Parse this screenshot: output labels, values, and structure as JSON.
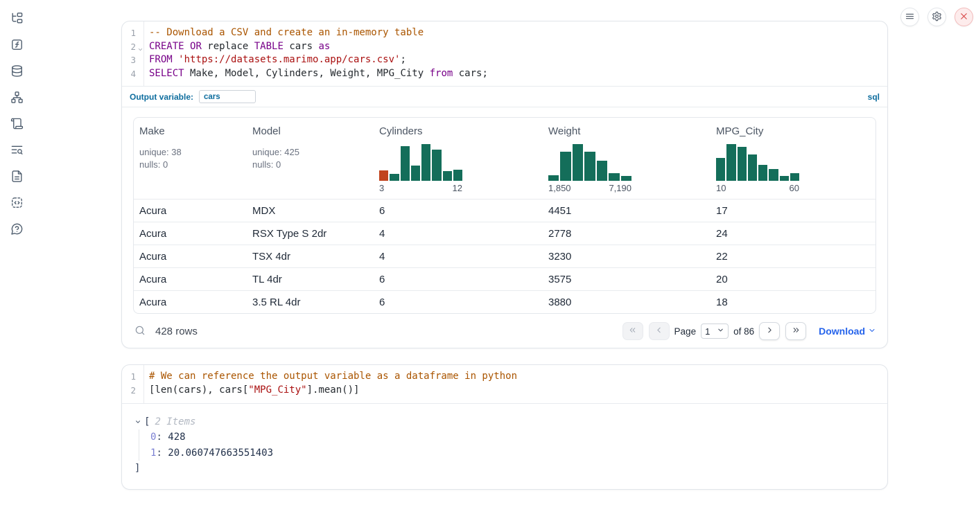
{
  "colors": {
    "accent_blue": "#0e6d9e",
    "link_blue": "#2563eb",
    "histogram_green": "#146e5a",
    "histogram_orange": "#c1441e",
    "code_keyword": "#770088",
    "code_string": "#aa1111",
    "code_comment": "#aa5500",
    "close_red": "#d94848"
  },
  "sidebar": {
    "items": [
      {
        "icon": "file-tree-icon",
        "name": "explorer"
      },
      {
        "icon": "function-square-icon",
        "name": "variables"
      },
      {
        "icon": "database-icon",
        "name": "data-sources"
      },
      {
        "icon": "network-icon",
        "name": "dependency-graph"
      },
      {
        "icon": "scroll-icon",
        "name": "scratchpad"
      },
      {
        "icon": "text-search-icon",
        "name": "logs"
      },
      {
        "icon": "file-text-icon",
        "name": "documentation"
      },
      {
        "icon": "snippets-icon",
        "name": "snippets"
      },
      {
        "icon": "help-bubble-icon",
        "name": "help"
      }
    ]
  },
  "top_controls": {
    "menu": "menu",
    "settings": "settings",
    "shutdown": "shutdown"
  },
  "sql_cell": {
    "lines": [
      {
        "num": "1",
        "tokens": [
          {
            "type": "comment",
            "text": "-- Download a CSV and create an in-memory table"
          }
        ]
      },
      {
        "num": "2",
        "foldable": true,
        "tokens": [
          {
            "type": "keyword",
            "text": "CREATE"
          },
          {
            "type": "plain",
            "text": " "
          },
          {
            "type": "keyword",
            "text": "OR"
          },
          {
            "type": "plain",
            "text": " replace "
          },
          {
            "type": "keyword",
            "text": "TABLE"
          },
          {
            "type": "plain",
            "text": " cars "
          },
          {
            "type": "keyword",
            "text": "as"
          }
        ]
      },
      {
        "num": "3",
        "tokens": [
          {
            "type": "keyword",
            "text": "FROM"
          },
          {
            "type": "plain",
            "text": " "
          },
          {
            "type": "string",
            "text": "'https://datasets.marimo.app/cars.csv'"
          },
          {
            "type": "plain",
            "text": ";"
          }
        ]
      },
      {
        "num": "4",
        "tokens": [
          {
            "type": "keyword",
            "text": "SELECT"
          },
          {
            "type": "plain",
            "text": " Make, Model, Cylinders, Weight, MPG_City "
          },
          {
            "type": "keyword",
            "text": "from"
          },
          {
            "type": "plain",
            "text": " cars;"
          }
        ]
      }
    ],
    "output_variable_label": "Output variable:",
    "output_variable_value": "cars",
    "language_badge": "sql"
  },
  "table": {
    "columns": [
      {
        "label": "Make",
        "stats": {
          "unique": "unique: 38",
          "nulls": "nulls: 0"
        }
      },
      {
        "label": "Model",
        "stats": {
          "unique": "unique: 425",
          "nulls": "nulls: 0"
        }
      },
      {
        "label": "Cylinders",
        "histogram": {
          "type": "bar",
          "values": [
            0.28,
            0.19,
            0.94,
            0.42,
            1.0,
            0.84,
            0.27,
            0.31
          ],
          "highlight_index": 0,
          "min_label": "3",
          "max_label": "12"
        }
      },
      {
        "label": "Weight",
        "histogram": {
          "type": "bar",
          "values": [
            0.15,
            0.8,
            1.0,
            0.8,
            0.55,
            0.2,
            0.14
          ],
          "min_label": "1,850",
          "max_label": "7,190"
        }
      },
      {
        "label": "MPG_City",
        "histogram": {
          "type": "bar",
          "values": [
            0.63,
            1.0,
            0.92,
            0.72,
            0.43,
            0.32,
            0.13,
            0.21
          ],
          "min_label": "10",
          "max_label": "60"
        }
      }
    ],
    "rows": [
      [
        "Acura",
        "MDX",
        "6",
        "4451",
        "17"
      ],
      [
        "Acura",
        "RSX Type S 2dr",
        "4",
        "2778",
        "24"
      ],
      [
        "Acura",
        "TSX 4dr",
        "4",
        "3230",
        "22"
      ],
      [
        "Acura",
        "TL 4dr",
        "6",
        "3575",
        "20"
      ],
      [
        "Acura",
        "3.5 RL 4dr",
        "6",
        "3880",
        "18"
      ]
    ],
    "footer": {
      "row_count": "428 rows",
      "page_label": "Page",
      "page_value": "1",
      "page_total": "of 86",
      "download_label": "Download"
    }
  },
  "python_cell": {
    "lines": [
      {
        "num": "1",
        "tokens": [
          {
            "type": "comment",
            "text": "# We can reference the output variable as a dataframe in python"
          }
        ]
      },
      {
        "num": "2",
        "tokens": [
          {
            "type": "plain",
            "text": "[len(cars), cars["
          },
          {
            "type": "string",
            "text": "\"MPG_City\""
          },
          {
            "type": "plain",
            "text": "].mean()]"
          }
        ]
      }
    ]
  },
  "python_output": {
    "open_bracket": "[",
    "items_label": "2 Items",
    "entries": [
      {
        "key": "0",
        "value": "428"
      },
      {
        "key": "1",
        "value": "20.060747663551403"
      }
    ],
    "close_bracket": "]"
  }
}
